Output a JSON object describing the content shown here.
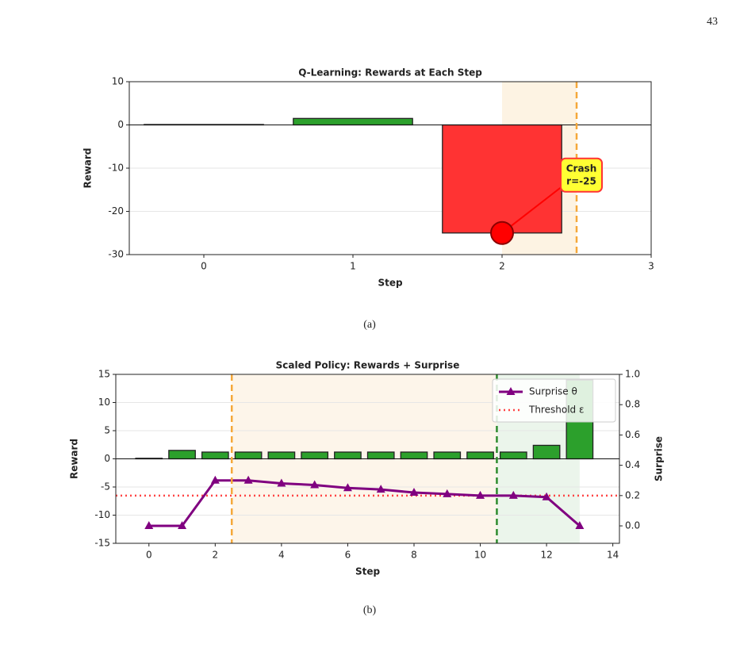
{
  "page_number": "43",
  "chart_data": [
    {
      "type": "bar",
      "title": "Q-Learning: Rewards at Each Step",
      "title_color": "#8b1a1a",
      "xlabel": "Step",
      "ylabel": "Reward",
      "caption": "(a)",
      "x": [
        0,
        1,
        2
      ],
      "values": [
        0.1,
        1.5,
        -25
      ],
      "colors": [
        "#2ca02c",
        "#2ca02c",
        "#ff3333"
      ],
      "xlim": [
        -0.5,
        3
      ],
      "xticks": [
        0,
        1,
        2,
        3
      ],
      "ylim": [
        -30,
        10
      ],
      "yticks": [
        -30,
        -20,
        -10,
        0,
        10
      ],
      "grid": true,
      "shaded_regions": [
        {
          "x": [
            2,
            2.5
          ],
          "color": "#fdf3e3"
        }
      ],
      "vlines": [
        {
          "x": 2.5,
          "color": "#f5a83a"
        }
      ],
      "highlight": {
        "x": 2,
        "y": -25,
        "color": "#ff0000"
      },
      "annotation": {
        "text": [
          "Crash",
          "r=-25"
        ],
        "color": "#8b1a1a",
        "box_color": "#ffff33",
        "edge_color": "#ff3333"
      }
    },
    {
      "type": "combo",
      "title": "Scaled Policy: Rewards + Surprise",
      "title_color": "#1a7a1a",
      "xlabel": "Step",
      "ylabel": "Reward",
      "y2label": "Surprise",
      "y2label_color": "#800080",
      "caption": "(b)",
      "x": [
        0,
        1,
        2,
        3,
        4,
        5,
        6,
        7,
        8,
        9,
        10,
        11,
        12,
        13
      ],
      "values": [
        0.1,
        1.5,
        1.2,
        1.2,
        1.2,
        1.2,
        1.2,
        1.2,
        1.2,
        1.2,
        1.2,
        1.2,
        2.4,
        14
      ],
      "color": "#2ca02c",
      "xlim": [
        -1,
        14.2
      ],
      "xticks": [
        0,
        2,
        4,
        6,
        8,
        10,
        12,
        14
      ],
      "ylim": [
        -15,
        15
      ],
      "yticks": [
        -15,
        -10,
        -5,
        0,
        5,
        10,
        15
      ],
      "y2lim": [
        -0.115,
        1.0
      ],
      "y2ticks": [
        {
          "value": 0,
          "label": "0.0"
        },
        0.2,
        0.4,
        0.6,
        0.8,
        {
          "value": 1,
          "label": "1.0"
        }
      ],
      "grid": true,
      "shaded_regions": [
        {
          "x": [
            2.5,
            10.5
          ],
          "color": "#fdf5ea"
        },
        {
          "x": [
            10.5,
            13
          ],
          "color": "#ebf5eb"
        }
      ],
      "vlines": [
        {
          "x": 2.5,
          "color": "#f5a83a"
        },
        {
          "x": 10.5,
          "color": "#2e8b2e"
        }
      ],
      "line_series": [
        {
          "name": "Surprise θ",
          "color": "#800080",
          "axis": "y2",
          "values": [
            0.0,
            0.0,
            0.3,
            0.3,
            0.28,
            0.27,
            0.25,
            0.24,
            0.22,
            0.21,
            0.2,
            0.2,
            0.19,
            0.0
          ]
        }
      ],
      "hlines": [
        {
          "name": "Threshold ε",
          "axis": "y2",
          "y": 0.2,
          "color": "#ff4444"
        }
      ],
      "legend": "upper right"
    }
  ]
}
